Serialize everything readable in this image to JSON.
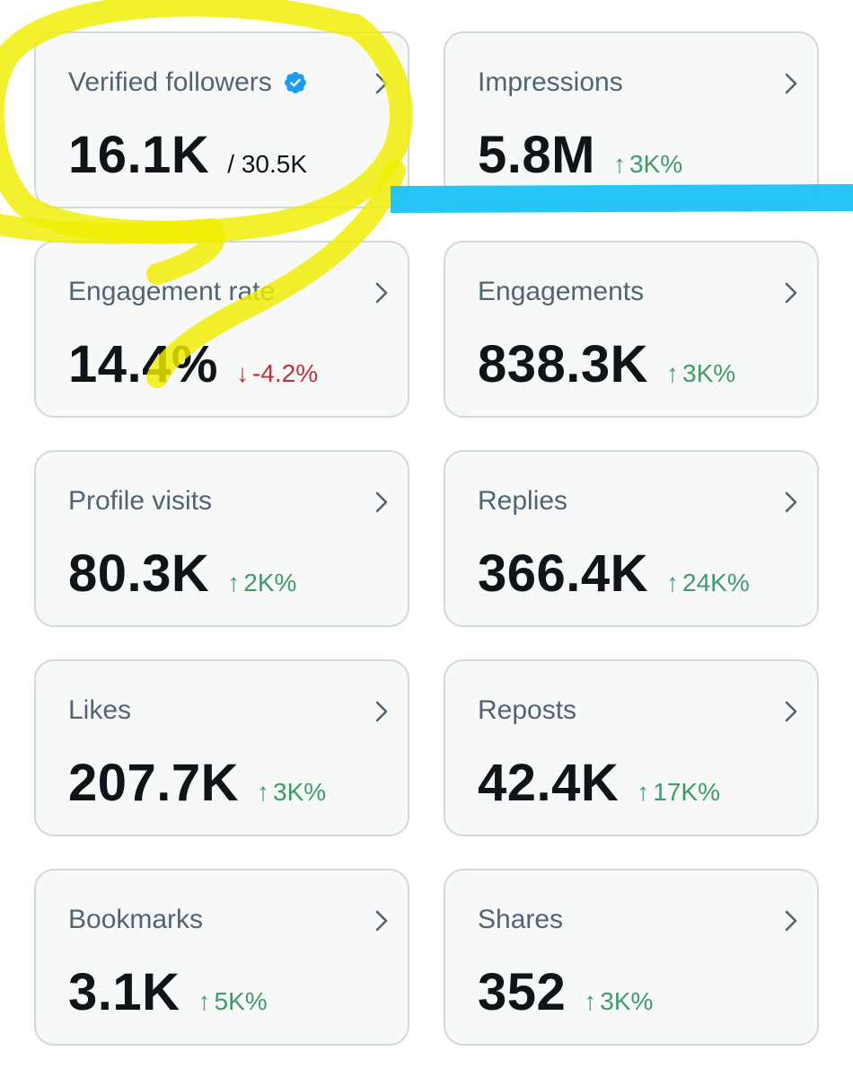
{
  "cards": [
    {
      "title": "Verified followers",
      "value": "16.1K",
      "total": "/ 30.5K",
      "icon": "verified-badge-icon",
      "color": "#1d9bf0"
    },
    {
      "title": "Impressions",
      "value": "5.8M",
      "change": "3K%",
      "direction": "up"
    },
    {
      "title": "Engagement rate",
      "value": "14.4%",
      "change": "-4.2%",
      "direction": "down"
    },
    {
      "title": "Engagements",
      "value": "838.3K",
      "change": "3K%",
      "direction": "up"
    },
    {
      "title": "Profile visits",
      "value": "80.3K",
      "change": "2K%",
      "direction": "up"
    },
    {
      "title": "Replies",
      "value": "366.4K",
      "change": "24K%",
      "direction": "up"
    },
    {
      "title": "Likes",
      "value": "207.7K",
      "change": "3K%",
      "direction": "up"
    },
    {
      "title": "Reposts",
      "value": "42.4K",
      "change": "17K%",
      "direction": "up"
    },
    {
      "title": "Bookmarks",
      "value": "3.1K",
      "change": "5K%",
      "direction": "up"
    },
    {
      "title": "Shares",
      "value": "352",
      "change": "3K%",
      "direction": "up"
    }
  ],
  "arrows": {
    "up": "↑",
    "down": "↓"
  },
  "colors": {
    "up": "#3f9c6a",
    "down": "#c4303a",
    "highlight_yellow": "#f2f200",
    "highlight_blue": "#19c3f5"
  }
}
